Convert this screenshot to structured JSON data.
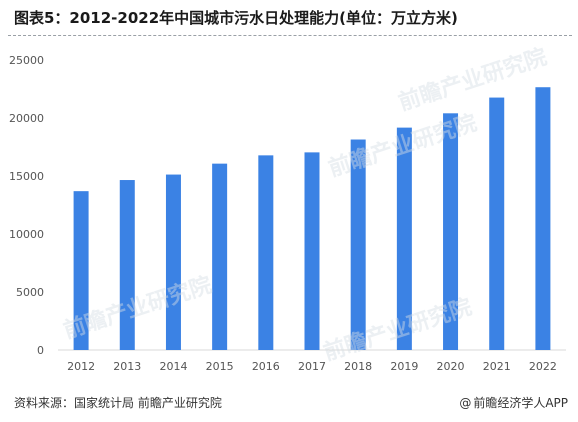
{
  "header": {
    "title": "图表5：2012-2022年中国城市污水日处理能力(单位：万立方米)"
  },
  "footer": {
    "source": "资料来源：国家统计局 前瞻产业研究院",
    "brand": "前瞻经济学人APP"
  },
  "watermark": {
    "text": "前瞻产业研究院"
  },
  "colors": {
    "bar": "#3b82e4",
    "axis": "#d9d9d9",
    "text": "#555555"
  },
  "chart_data": {
    "type": "bar",
    "title": "",
    "xlabel": "",
    "ylabel": "",
    "categories": [
      "2012",
      "2013",
      "2014",
      "2015",
      "2016",
      "2017",
      "2018",
      "2019",
      "2020",
      "2021",
      "2022"
    ],
    "values": [
      13693,
      14652,
      15124,
      16065,
      16780,
      17037,
      18145,
      19171,
      20405,
      21761,
      22653
    ],
    "ylim": [
      0,
      25000
    ],
    "yticks": [
      0,
      5000,
      10000,
      15000,
      20000,
      25000
    ],
    "grid": false,
    "legend": "none"
  }
}
